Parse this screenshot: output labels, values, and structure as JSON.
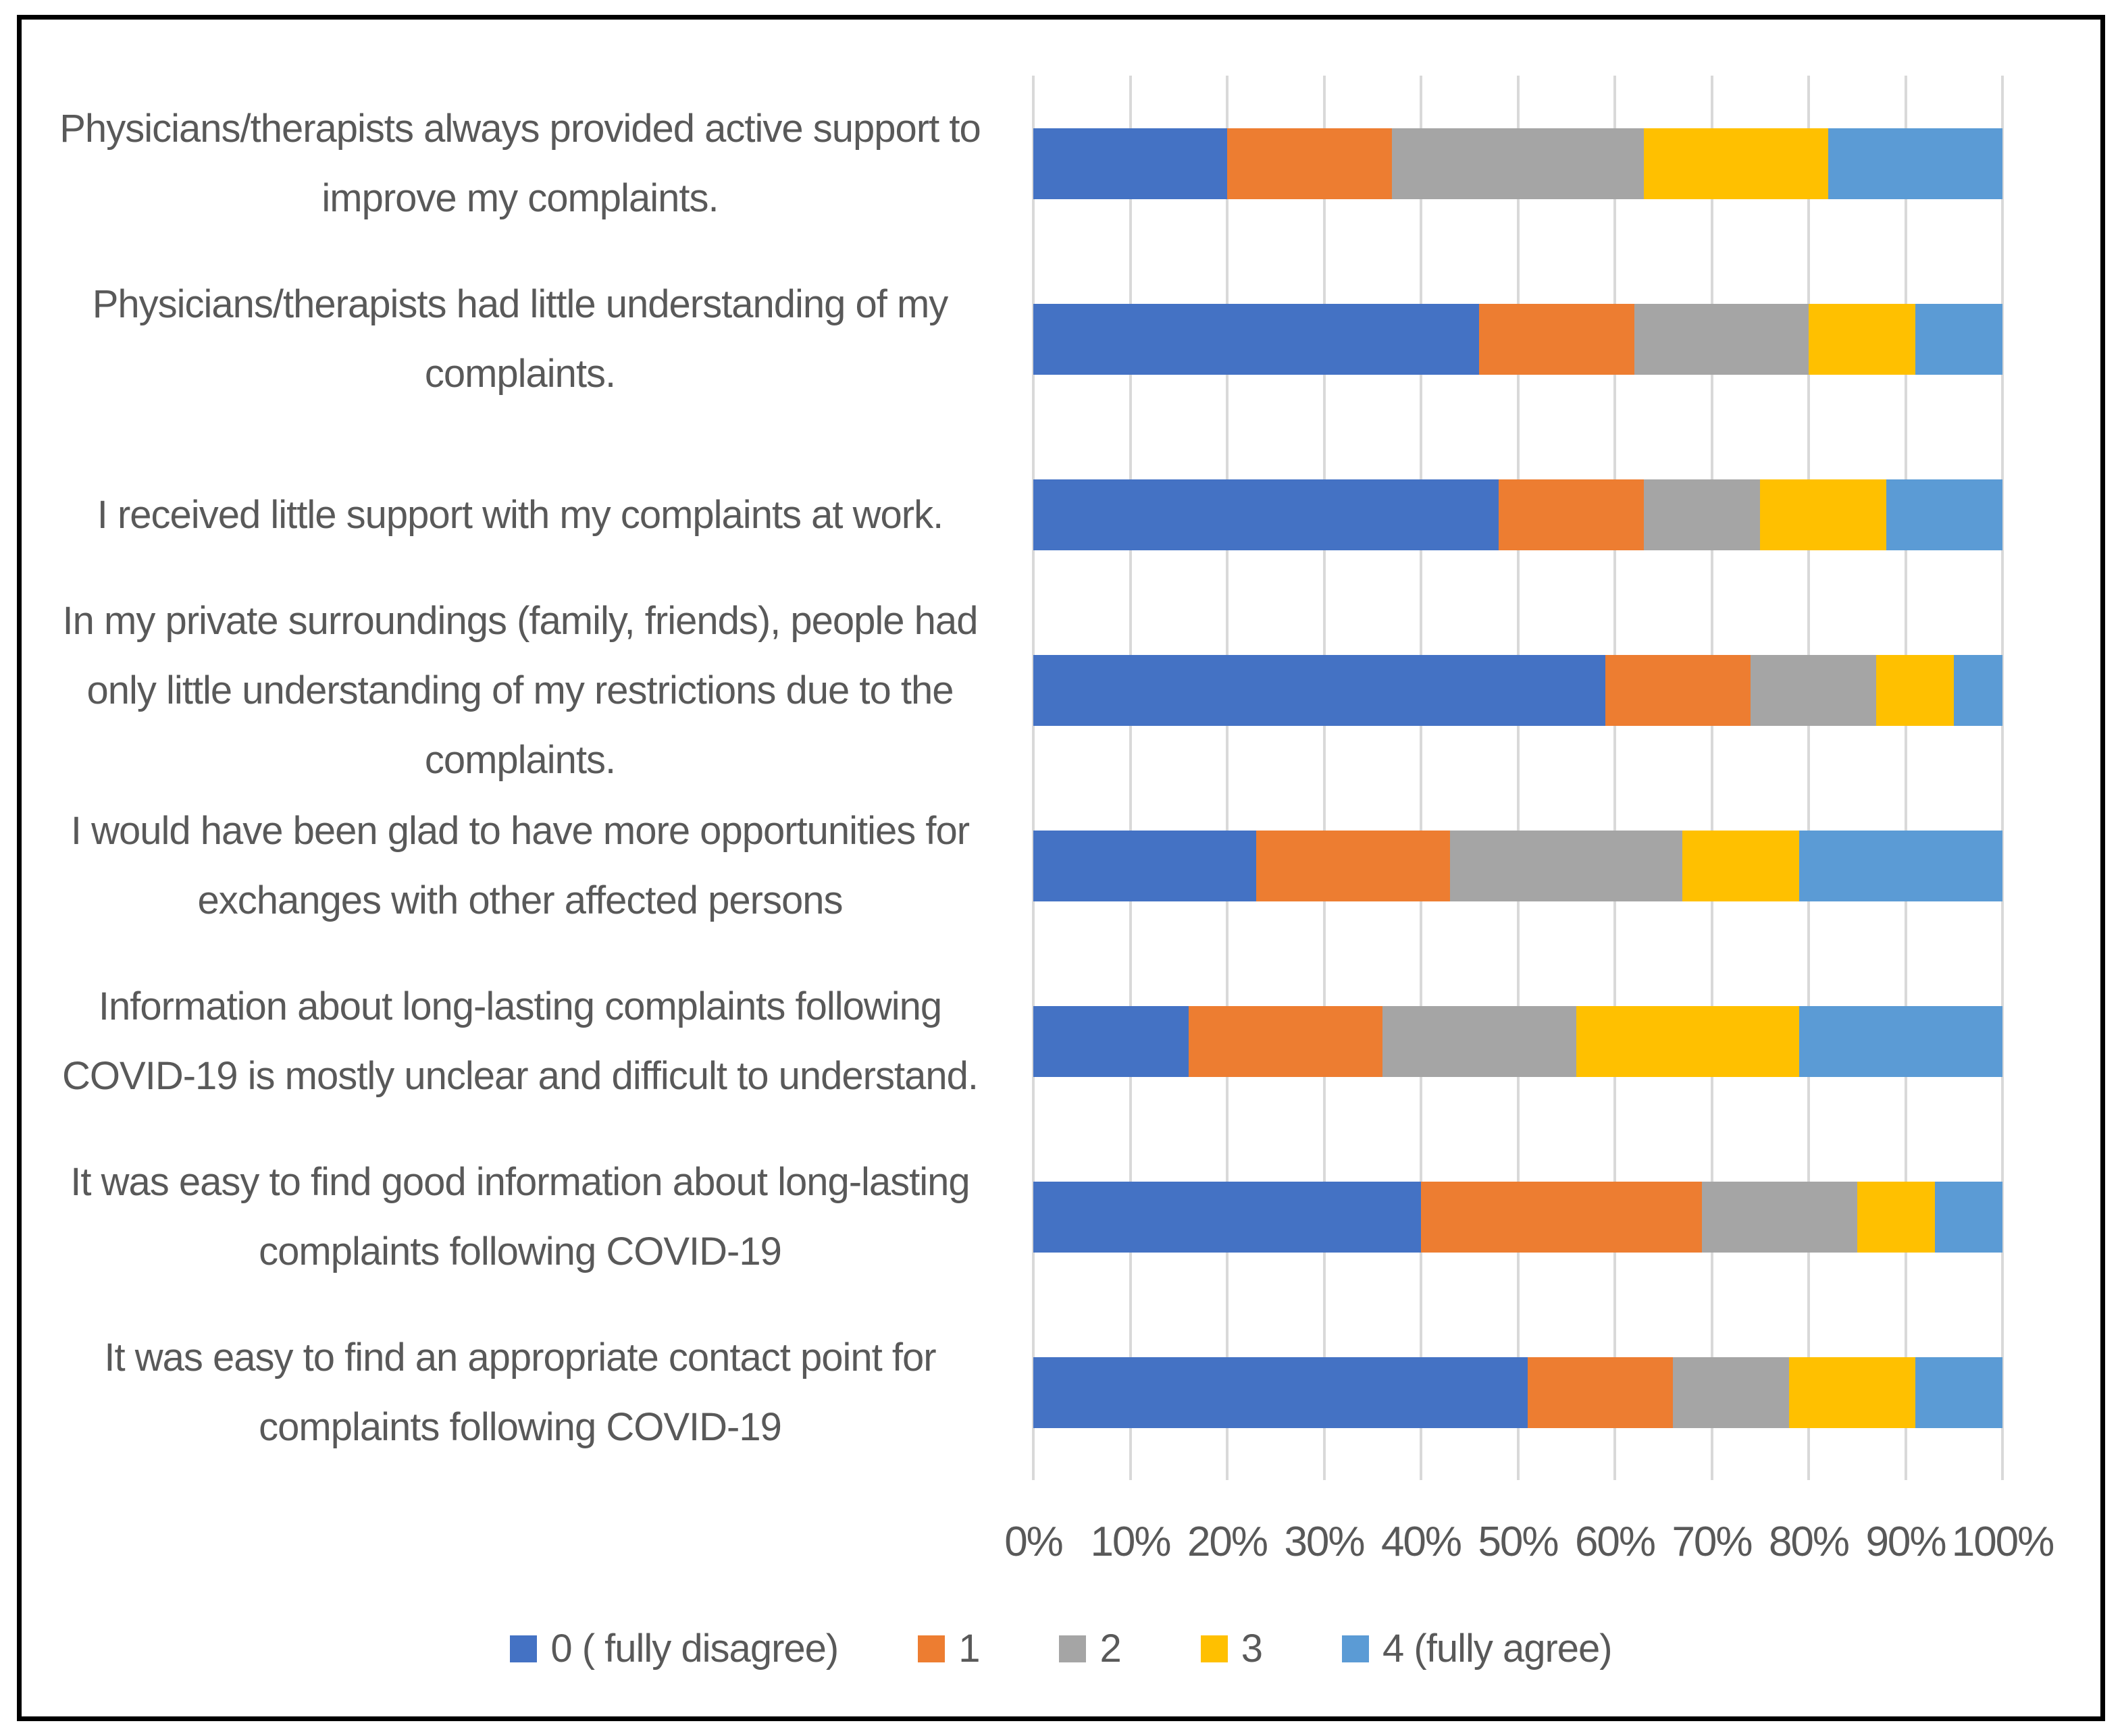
{
  "chart_data": {
    "type": "bar",
    "variant": "horizontal-stacked-100pct",
    "title": "",
    "xlabel": "",
    "ylabel": "",
    "unit": "%",
    "grid": true,
    "legend_position": "bottom",
    "x_axis": {
      "min": 0,
      "max": 100,
      "tick_step": 10,
      "ticks": [
        "0%",
        "10%",
        "20%",
        "30%",
        "40%",
        "50%",
        "60%",
        "70%",
        "80%",
        "90%",
        "100%"
      ]
    },
    "categories": [
      "Physicians/therapists always provided active support to improve my complaints.",
      "Physicians/therapists had little understanding of my complaints.",
      "I received little support with my complaints at work.",
      "In my private surroundings (family, friends), people had only little understanding of my restrictions due to the complaints.",
      "I would have been glad to have more opportunities for exchanges with other affected persons",
      "Information about long-lasting complaints following COVID-19 is mostly unclear and difficult to understand.",
      "It was easy to find good information about long-lasting complaints following COVID-19",
      "It was easy to find an appropriate contact point for complaints following COVID-19"
    ],
    "series": [
      {
        "name": "0 ( fully disagree)",
        "color": "#4472C4",
        "values": [
          20,
          46,
          48,
          59,
          23,
          16,
          40,
          51
        ]
      },
      {
        "name": "1",
        "color": "#ED7D31",
        "values": [
          17,
          16,
          15,
          15,
          20,
          20,
          29,
          15
        ]
      },
      {
        "name": "2",
        "color": "#A5A5A5",
        "values": [
          26,
          18,
          12,
          13,
          24,
          20,
          16,
          12
        ]
      },
      {
        "name": "3",
        "color": "#FFC000",
        "values": [
          19,
          11,
          13,
          8,
          12,
          23,
          8,
          13
        ]
      },
      {
        "name": "4 (fully agree)",
        "color": "#5B9BD5",
        "values": [
          18,
          9,
          12,
          5,
          21,
          21,
          7,
          9
        ]
      }
    ],
    "styles": {
      "gridline_color": "#D9D9D9",
      "text_color": "#595959",
      "frame_color": "#000000",
      "background_color": "#FFFFFF"
    }
  }
}
